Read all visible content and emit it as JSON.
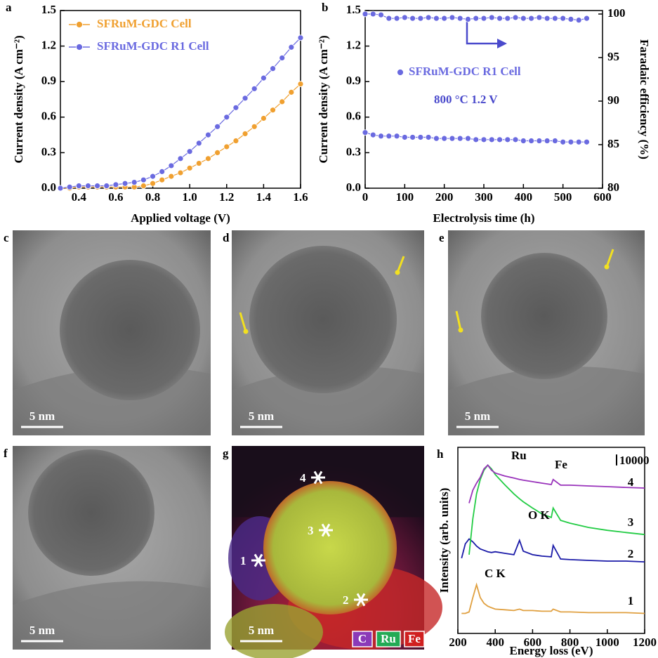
{
  "chart_data": [
    {
      "type": "line",
      "panel": "a",
      "markers": true,
      "x_label": "Applied voltage (V)",
      "y_label": "Current density (A cm⁻²)",
      "xlim": [
        0.3,
        1.6
      ],
      "xticks": [
        0.4,
        0.6,
        0.8,
        {
          "value": 1,
          "label": "1.0"
        },
        1.2,
        1.4,
        1.6
      ],
      "ylim": [
        0,
        1.5
      ],
      "yticks": [
        {
          "value": 0,
          "label": "0.0"
        },
        0.3,
        0.6,
        0.9,
        1.2,
        1.5
      ],
      "legend": "upper left",
      "x": [
        0.3,
        0.35,
        0.4,
        0.45,
        0.5,
        0.55,
        0.6,
        0.65,
        0.7,
        0.75,
        0.8,
        0.85,
        0.9,
        0.95,
        1.0,
        1.05,
        1.1,
        1.15,
        1.2,
        1.25,
        1.3,
        1.35,
        1.4,
        1.45,
        1.5,
        1.55,
        1.6
      ],
      "series": [
        {
          "name": "SFRuM-GDC Cell",
          "color": "#f0a030",
          "values": [
            0,
            0,
            0.01,
            0.01,
            0.01,
            0.01,
            0.01,
            0.01,
            0.01,
            0.02,
            0.04,
            0.07,
            0.1,
            0.13,
            0.17,
            0.21,
            0.25,
            0.3,
            0.35,
            0.4,
            0.46,
            0.52,
            0.59,
            0.66,
            0.73,
            0.81,
            0.88
          ]
        },
        {
          "name": "SFRuM-GDC R1 Cell",
          "color": "#6a6ae0",
          "values": [
            0,
            0.01,
            0.02,
            0.02,
            0.02,
            0.02,
            0.03,
            0.04,
            0.05,
            0.07,
            0.1,
            0.14,
            0.19,
            0.25,
            0.31,
            0.38,
            0.45,
            0.52,
            0.6,
            0.68,
            0.76,
            0.84,
            0.93,
            1.01,
            1.1,
            1.19,
            1.27
          ]
        }
      ]
    },
    {
      "type": "line",
      "panel": "b",
      "markers": true,
      "x_label": "Electrolysis time (h)",
      "y_label": "Current density (A cm⁻²)",
      "y2_label": "Faradaic efficiency (%)",
      "xlim": [
        0,
        600
      ],
      "xticks": [
        0,
        100,
        200,
        300,
        400,
        500,
        600
      ],
      "ylim": [
        0,
        1.5
      ],
      "yticks": [
        {
          "value": 0,
          "label": "0.0"
        },
        0.3,
        0.6,
        0.9,
        1.2,
        1.5
      ],
      "y2lim": [
        80,
        100.4
      ],
      "y2ticks": [
        80,
        85,
        90,
        95,
        100
      ],
      "annotations": [
        "800 °C 1.2 V"
      ],
      "x": [
        0,
        20,
        40,
        60,
        80,
        100,
        120,
        140,
        160,
        180,
        200,
        220,
        240,
        260,
        280,
        300,
        320,
        340,
        360,
        380,
        400,
        420,
        440,
        460,
        480,
        500,
        520,
        540,
        560
      ],
      "series": [
        {
          "color": "#6a6ae0",
          "values": [
            0.47,
            0.45,
            0.44,
            0.44,
            0.44,
            0.43,
            0.43,
            0.43,
            0.43,
            0.42,
            0.42,
            0.42,
            0.42,
            0.42,
            0.41,
            0.41,
            0.41,
            0.41,
            0.41,
            0.41,
            0.4,
            0.4,
            0.4,
            0.4,
            0.4,
            0.39,
            0.39,
            0.39,
            0.39
          ]
        },
        {
          "name": "SFRuM-GDC R1 Cell",
          "color": "#6a6ae0",
          "axis": "y2",
          "values": [
            100,
            100,
            99.9,
            99.5,
            99.5,
            99.6,
            99.5,
            99.5,
            99.6,
            99.5,
            99.5,
            99.6,
            99.5,
            99.4,
            99.5,
            99.5,
            99.6,
            99.5,
            99.5,
            99.6,
            99.5,
            99.5,
            99.6,
            99.5,
            99.5,
            99.5,
            99.4,
            99.3,
            99.5
          ]
        }
      ]
    },
    {
      "type": "line",
      "panel": "h",
      "markers": false,
      "x_label": "Energy loss (eV)",
      "y_label": "Intensity (arb. units)",
      "xlim": [
        200,
        1200
      ],
      "xticks": [
        200,
        400,
        600,
        800,
        1000,
        1200
      ],
      "ylim": [
        0,
        170000
      ],
      "scale_bar": 10000,
      "annotations": [
        "Ru",
        "Fe",
        "O K",
        "C K"
      ],
      "x": [
        220,
        240,
        260,
        280,
        300,
        320,
        340,
        360,
        380,
        400,
        450,
        500,
        530,
        550,
        600,
        650,
        700,
        710,
        750,
        800,
        900,
        1000,
        1100,
        1200
      ],
      "series": [
        {
          "name": "1",
          "color": "#e0a040",
          "values": [
            18300,
            18300,
            19600,
            32700,
            44500,
            32700,
            27500,
            24900,
            23500,
            22200,
            21600,
            20900,
            22200,
            20900,
            20900,
            20300,
            20300,
            22200,
            19600,
            19600,
            19000,
            19000,
            19000,
            18300
          ]
        },
        {
          "name": "2",
          "color": "#1a1aa8",
          "values": [
            68700,
            81800,
            86300,
            83700,
            79800,
            77200,
            75900,
            74600,
            73900,
            74600,
            73200,
            71900,
            85000,
            75200,
            71900,
            70600,
            70000,
            80400,
            68000,
            67400,
            66700,
            66100,
            66100,
            65400
          ]
        },
        {
          "name": "3",
          "color": "#22cc44",
          "values": [
            null,
            null,
            71900,
            104600,
            127500,
            140600,
            149100,
            153700,
            150400,
            145200,
            136000,
            127500,
            123000,
            120300,
            114500,
            109200,
            105900,
            114500,
            103300,
            100700,
            96800,
            94200,
            92200,
            90300
          ]
        },
        {
          "name": "4",
          "color": "#9933bb",
          "values": [
            null,
            null,
            119000,
            130800,
            137300,
            142600,
            150400,
            153700,
            149100,
            146500,
            143900,
            141900,
            140600,
            140000,
            138600,
            137300,
            136000,
            140600,
            135400,
            135400,
            134700,
            134100,
            133400,
            132800
          ]
        }
      ]
    }
  ],
  "images": [
    {
      "panel": "c",
      "scale_bar": "5 nm"
    },
    {
      "panel": "d",
      "scale_bar": "5 nm"
    },
    {
      "panel": "e",
      "scale_bar": "5 nm"
    },
    {
      "panel": "f",
      "scale_bar": "5 nm"
    },
    {
      "panel": "g",
      "scale_bar": "5 nm",
      "markers": [
        "1",
        "2",
        "3",
        "4"
      ],
      "legend": [
        "C",
        "Ru",
        "Fe"
      ]
    }
  ]
}
